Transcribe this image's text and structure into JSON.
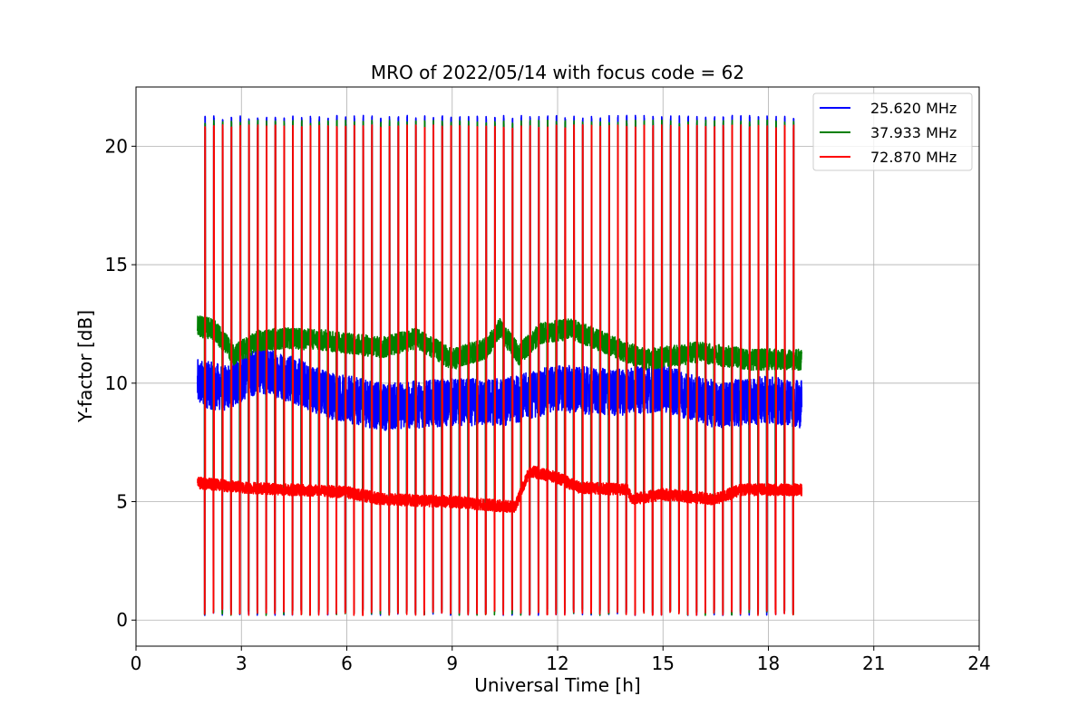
{
  "chart_data": {
    "type": "line",
    "title": "MRO of 2022/05/14 with focus code = 62",
    "xlabel": "Universal Time [h]",
    "ylabel": "Y-factor [dB]",
    "xlim": [
      0,
      24
    ],
    "ylim": [
      -1.1,
      22.5
    ],
    "xticks": [
      0,
      3,
      6,
      9,
      12,
      15,
      18,
      21,
      24
    ],
    "yticks": [
      0,
      5,
      10,
      15,
      20
    ],
    "grid": true,
    "legend_position": "top-right",
    "data_time_range": [
      1.75,
      18.95
    ],
    "pulse_period_h": 0.25,
    "series": [
      {
        "name": "25.620 MHz",
        "color": "#0000ff",
        "pulse_peak": 21.3,
        "pulse_floor": 0.2,
        "baseline": [
          [
            1.75,
            10.0
          ],
          [
            2.5,
            9.8
          ],
          [
            3.5,
            10.6
          ],
          [
            4.2,
            10.3
          ],
          [
            5.5,
            9.5
          ],
          [
            7.0,
            9.0
          ],
          [
            9.0,
            9.2
          ],
          [
            10.5,
            9.2
          ],
          [
            12.0,
            9.8
          ],
          [
            13.5,
            9.6
          ],
          [
            15.0,
            9.8
          ],
          [
            16.5,
            9.1
          ],
          [
            18.0,
            9.3
          ],
          [
            18.95,
            9.1
          ]
        ],
        "noise_amplitude": 1.0
      },
      {
        "name": "37.933 MHz",
        "color": "#008000",
        "pulse_peak": 21.1,
        "pulse_floor": 0.2,
        "baseline": [
          [
            1.75,
            12.4
          ],
          [
            2.2,
            12.3
          ],
          [
            2.8,
            11.2
          ],
          [
            3.5,
            11.8
          ],
          [
            4.2,
            11.9
          ],
          [
            5.5,
            11.8
          ],
          [
            7.0,
            11.5
          ],
          [
            8.0,
            11.9
          ],
          [
            9.0,
            11.0
          ],
          [
            10.0,
            11.5
          ],
          [
            10.35,
            12.3
          ],
          [
            10.9,
            11.2
          ],
          [
            11.5,
            12.1
          ],
          [
            12.4,
            12.3
          ],
          [
            13.5,
            11.6
          ],
          [
            14.5,
            11.0
          ],
          [
            16.0,
            11.3
          ],
          [
            17.5,
            11.0
          ],
          [
            18.95,
            11.0
          ]
        ],
        "noise_amplitude": 0.45
      },
      {
        "name": "72.870 MHz",
        "color": "#ff0000",
        "pulse_peak": 20.9,
        "pulse_floor": 0.2,
        "baseline": [
          [
            1.75,
            5.8
          ],
          [
            3.0,
            5.6
          ],
          [
            4.5,
            5.5
          ],
          [
            6.0,
            5.4
          ],
          [
            7.0,
            5.1
          ],
          [
            9.0,
            5.0
          ],
          [
            10.5,
            4.8
          ],
          [
            10.8,
            4.8
          ],
          [
            11.2,
            6.3
          ],
          [
            12.0,
            6.0
          ],
          [
            12.6,
            5.6
          ],
          [
            14.0,
            5.5
          ],
          [
            14.1,
            5.1
          ],
          [
            15.0,
            5.3
          ],
          [
            16.5,
            5.1
          ],
          [
            17.2,
            5.5
          ],
          [
            18.95,
            5.5
          ]
        ],
        "noise_amplitude": 0.25
      }
    ]
  }
}
